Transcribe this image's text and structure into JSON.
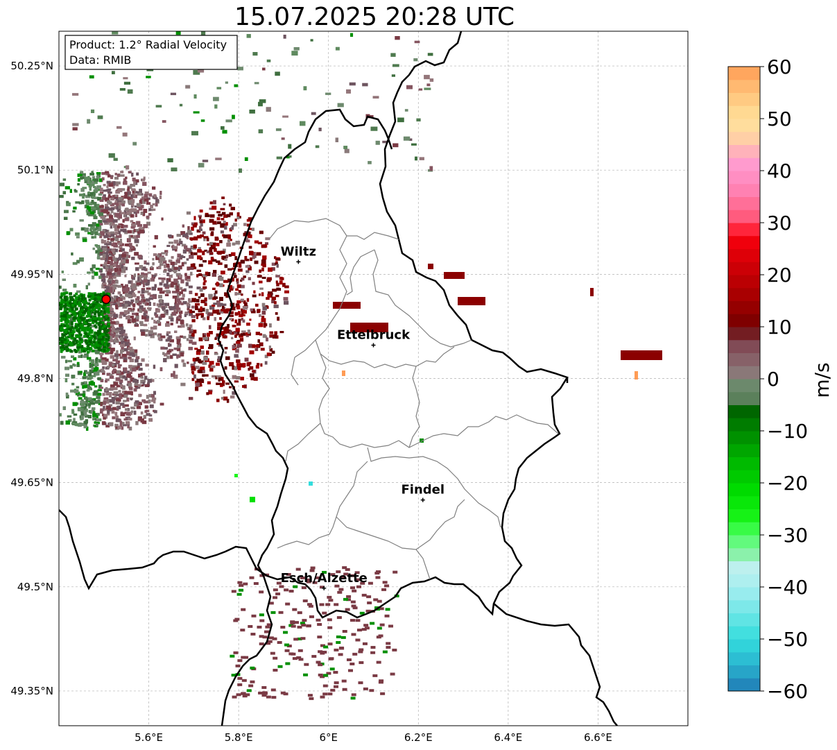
{
  "title": "15.07.2025 20:28 UTC",
  "info_box": {
    "line1": "Product: 1.2° Radial Velocity",
    "line2": "Data: RMIB"
  },
  "map": {
    "lon_range": [
      5.4,
      6.8
    ],
    "lat_range": [
      49.3,
      50.3
    ],
    "x_ticks": [
      {
        "value": 5.6,
        "label": "5.6°E"
      },
      {
        "value": 5.8,
        "label": "5.8°E"
      },
      {
        "value": 6.0,
        "label": "6°E"
      },
      {
        "value": 6.2,
        "label": "6.2°E"
      },
      {
        "value": 6.4,
        "label": "6.4°E"
      },
      {
        "value": 6.6,
        "label": "6.6°E"
      }
    ],
    "y_ticks": [
      {
        "value": 50.25,
        "label": "50.25°N"
      },
      {
        "value": 50.1,
        "label": "50.1°N"
      },
      {
        "value": 49.95,
        "label": "49.95°N"
      },
      {
        "value": 49.8,
        "label": "49.8°N"
      },
      {
        "value": 49.65,
        "label": "49.65°N"
      },
      {
        "value": 49.5,
        "label": "49.5°N"
      },
      {
        "value": 49.35,
        "label": "49.35°N"
      }
    ],
    "grid": true,
    "radar_site": {
      "lon": 5.505,
      "lat": 49.914
    },
    "cities": [
      {
        "name": "Wiltz",
        "lon": 5.933,
        "lat": 49.968
      },
      {
        "name": "Ettelbruck",
        "lon": 6.1,
        "lat": 49.848
      },
      {
        "name": "Findel",
        "lon": 6.21,
        "lat": 49.625
      },
      {
        "name": "Esch/Alzette",
        "lon": 5.99,
        "lat": 49.498
      }
    ]
  },
  "colorbar": {
    "label": "m/s",
    "min": -60,
    "max": 60,
    "ticks": [
      {
        "value": 60,
        "label": "60"
      },
      {
        "value": 50,
        "label": "50"
      },
      {
        "value": 40,
        "label": "40"
      },
      {
        "value": 30,
        "label": "30"
      },
      {
        "value": 20,
        "label": "20"
      },
      {
        "value": 10,
        "label": "10"
      },
      {
        "value": 0,
        "label": "0"
      },
      {
        "value": -10,
        "label": "−10"
      },
      {
        "value": -20,
        "label": "−20"
      },
      {
        "value": -30,
        "label": "−30"
      },
      {
        "value": -40,
        "label": "−40"
      },
      {
        "value": -50,
        "label": "−50"
      },
      {
        "value": -60,
        "label": "−60"
      }
    ],
    "stops": [
      {
        "value": -60,
        "color": "#1f78b4"
      },
      {
        "value": -55,
        "color": "#2ab4cf"
      },
      {
        "value": -50,
        "color": "#33dddd"
      },
      {
        "value": -45,
        "color": "#6fe6e6"
      },
      {
        "value": -40,
        "color": "#a6eef0"
      },
      {
        "value": -36,
        "color": "#bff0ee"
      },
      {
        "value": -34,
        "color": "#8ff0b0"
      },
      {
        "value": -30,
        "color": "#4dff66"
      },
      {
        "value": -27,
        "color": "#1af51a"
      },
      {
        "value": -22,
        "color": "#00e000"
      },
      {
        "value": -16,
        "color": "#00b800"
      },
      {
        "value": -11,
        "color": "#008f00"
      },
      {
        "value": -6,
        "color": "#006400"
      },
      {
        "value": -5.5,
        "color": "#4f7a4f"
      },
      {
        "value": -1,
        "color": "#6e8a6e"
      },
      {
        "value": 1,
        "color": "#8a7a7a"
      },
      {
        "value": 5,
        "color": "#855560"
      },
      {
        "value": 8.5,
        "color": "#7a3a44"
      },
      {
        "value": 9,
        "color": "#6b0000"
      },
      {
        "value": 15,
        "color": "#a00000"
      },
      {
        "value": 24,
        "color": "#e00008"
      },
      {
        "value": 28.5,
        "color": "#ff0010"
      },
      {
        "value": 29,
        "color": "#ff4a66"
      },
      {
        "value": 36,
        "color": "#ff80b0"
      },
      {
        "value": 41,
        "color": "#ff99d0"
      },
      {
        "value": 44,
        "color": "#ffb4b8"
      },
      {
        "value": 47,
        "color": "#ffd8a0"
      },
      {
        "value": 50,
        "color": "#ffe09a"
      },
      {
        "value": 55,
        "color": "#ffc27a"
      },
      {
        "value": 60,
        "color": "#ff9c55"
      }
    ]
  }
}
